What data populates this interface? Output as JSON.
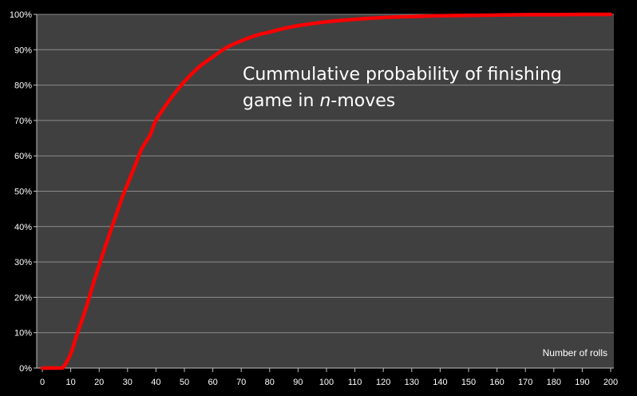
{
  "chart_data": {
    "type": "line",
    "title": "",
    "xlabel": "Number of rolls",
    "ylabel": "",
    "xlim": [
      0,
      200
    ],
    "ylim": [
      0,
      100
    ],
    "x_ticks": [
      "0",
      "10",
      "20",
      "30",
      "40",
      "50",
      "60",
      "70",
      "80",
      "90",
      "100",
      "110",
      "120",
      "130",
      "140",
      "150",
      "160",
      "170",
      "180",
      "190",
      "200"
    ],
    "y_ticks": [
      "0%",
      "10%",
      "20%",
      "30%",
      "40%",
      "50%",
      "60%",
      "70%",
      "80%",
      "90%",
      "100%"
    ],
    "grid": "horizontal",
    "annotation": {
      "line1": "Cummulative probability of finishing",
      "line2_prefix": "game in ",
      "line2_italic": "n",
      "line2_suffix": "-moves"
    },
    "series": [
      {
        "color": "#ff0000",
        "x": [
          0,
          5,
          7,
          8,
          10,
          12,
          15,
          18,
          20,
          22,
          25,
          28,
          30,
          33,
          35,
          38,
          40,
          45,
          50,
          55,
          60,
          65,
          70,
          75,
          80,
          85,
          90,
          100,
          110,
          120,
          130,
          140,
          150,
          160,
          170,
          180,
          190,
          200
        ],
        "y": [
          0,
          0,
          0,
          1,
          4,
          9,
          16,
          24,
          29,
          34,
          41,
          48,
          52,
          58,
          62,
          66,
          70,
          76,
          81,
          85,
          88,
          90.7,
          92.5,
          94,
          95,
          96,
          96.8,
          97.9,
          98.6,
          99.1,
          99.4,
          99.6,
          99.7,
          99.8,
          99.9,
          99.9,
          100,
          100
        ]
      }
    ]
  },
  "colors": {
    "background": "#000000",
    "plot_area": "#404040",
    "gridline": "#8a8a8a",
    "axis": "#bfbfbf",
    "line": "#ff0000",
    "text": "#ffffff"
  }
}
